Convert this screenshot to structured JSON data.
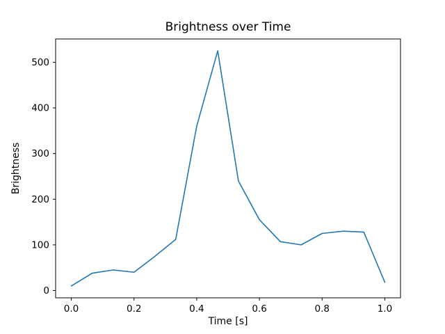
{
  "chart_data": {
    "type": "line",
    "title": "Brightness over Time",
    "xlabel": "Time [s]",
    "ylabel": "Brightness",
    "x": [
      0.0,
      0.067,
      0.133,
      0.2,
      0.267,
      0.333,
      0.4,
      0.467,
      0.533,
      0.6,
      0.667,
      0.733,
      0.8,
      0.867,
      0.933,
      1.0
    ],
    "y": [
      10,
      38,
      45,
      40,
      75,
      112,
      360,
      525,
      240,
      155,
      107,
      100,
      125,
      130,
      128,
      18
    ],
    "xlim": [
      -0.05,
      1.05
    ],
    "ylim": [
      -16,
      551
    ],
    "xticks": {
      "values": [
        0.0,
        0.2,
        0.4,
        0.6,
        0.8,
        1.0
      ],
      "labels": [
        "0.0",
        "0.2",
        "0.4",
        "0.6",
        "0.8",
        "1.0"
      ]
    },
    "yticks": {
      "values": [
        0,
        100,
        200,
        300,
        400,
        500
      ],
      "labels": [
        "0",
        "100",
        "200",
        "300",
        "400",
        "500"
      ]
    },
    "line_color": "#1f77b4",
    "axis_color": "#000000",
    "background_color": "#ffffff",
    "grid": false,
    "legend": null
  }
}
